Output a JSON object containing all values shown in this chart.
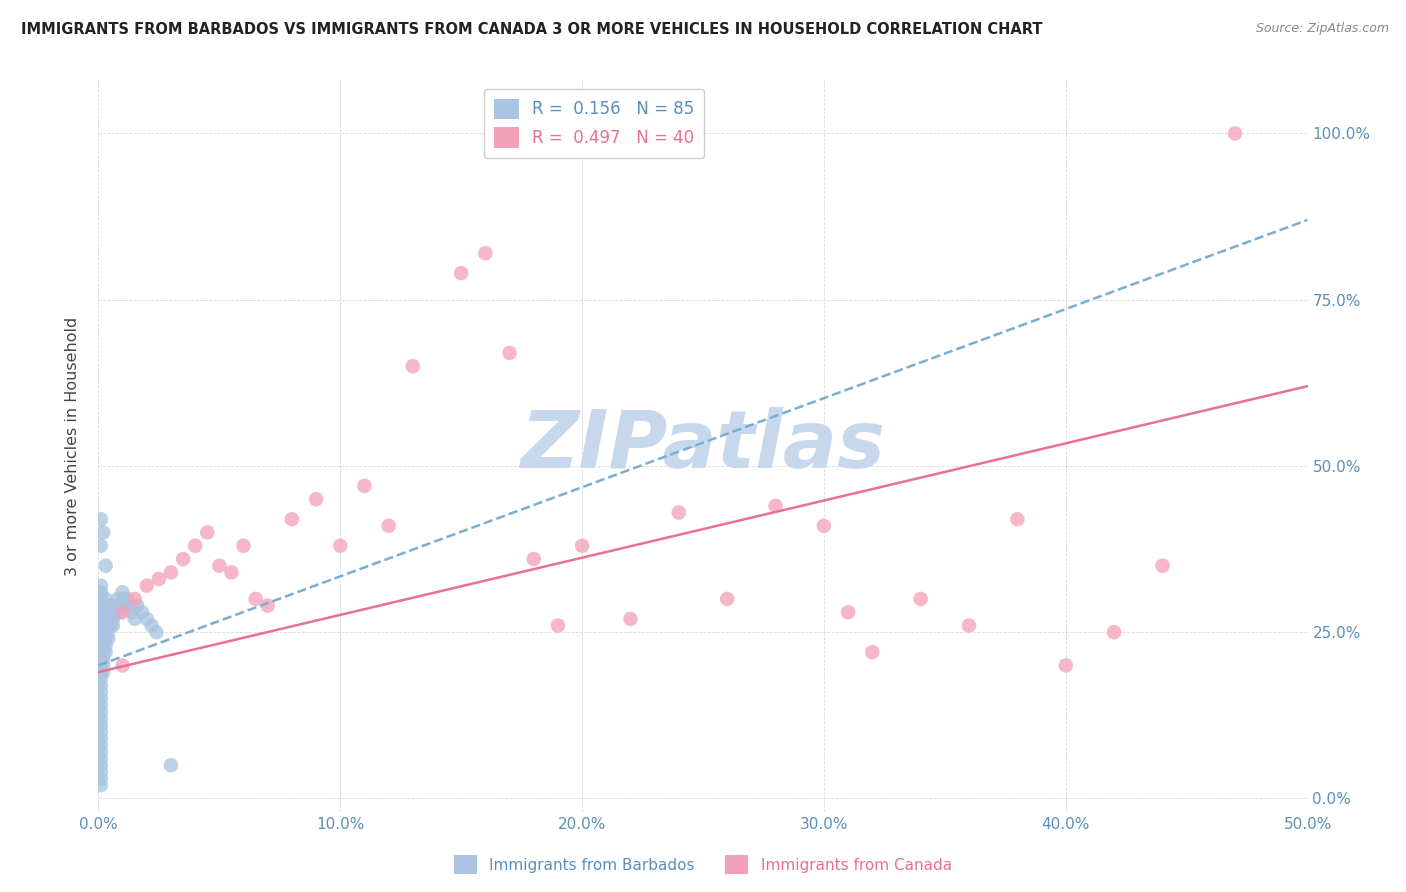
{
  "title": "IMMIGRANTS FROM BARBADOS VS IMMIGRANTS FROM CANADA 3 OR MORE VEHICLES IN HOUSEHOLD CORRELATION CHART",
  "source": "Source: ZipAtlas.com",
  "ylabel": "3 or more Vehicles in Household",
  "xlim": [
    0.0,
    0.5
  ],
  "ylim": [
    -0.02,
    1.08
  ],
  "xticks": [
    0.0,
    0.1,
    0.2,
    0.3,
    0.4,
    0.5
  ],
  "yticks": [
    0.0,
    0.25,
    0.5,
    0.75,
    1.0
  ],
  "xticklabels": [
    "0.0%",
    "10.0%",
    "20.0%",
    "30.0%",
    "40.0%",
    "50.0%"
  ],
  "yticklabels": [
    "0.0%",
    "25.0%",
    "50.0%",
    "75.0%",
    "100.0%"
  ],
  "barbados_color": "#a8c4e0",
  "canada_color": "#f4a0b8",
  "barbados_line_color": "#7aaed0",
  "canada_line_color": "#e87090",
  "watermark": "ZIPatlas",
  "watermark_color": "#c8d8ec",
  "legend_label1": "Immigrants from Barbados",
  "legend_label2": "Immigrants from Canada",
  "barbados_R": 0.156,
  "barbados_N": 85,
  "canada_R": 0.497,
  "canada_N": 40,
  "barbados_line_x0": 0.0,
  "barbados_line_y0": 0.2,
  "barbados_line_x1": 0.5,
  "barbados_line_y1": 0.87,
  "canada_line_x0": 0.0,
  "canada_line_y0": 0.19,
  "canada_line_x1": 0.5,
  "canada_line_y1": 0.62,
  "barbados_x": [
    0.001,
    0.001,
    0.001,
    0.001,
    0.001,
    0.001,
    0.001,
    0.001,
    0.001,
    0.001,
    0.001,
    0.001,
    0.001,
    0.001,
    0.001,
    0.001,
    0.001,
    0.001,
    0.001,
    0.001,
    0.001,
    0.001,
    0.001,
    0.001,
    0.001,
    0.001,
    0.001,
    0.001,
    0.001,
    0.001,
    0.002,
    0.002,
    0.002,
    0.002,
    0.002,
    0.002,
    0.002,
    0.002,
    0.002,
    0.002,
    0.003,
    0.003,
    0.003,
    0.003,
    0.003,
    0.003,
    0.003,
    0.003,
    0.003,
    0.004,
    0.004,
    0.004,
    0.004,
    0.004,
    0.005,
    0.005,
    0.005,
    0.005,
    0.006,
    0.006,
    0.006,
    0.007,
    0.007,
    0.008,
    0.008,
    0.009,
    0.009,
    0.01,
    0.01,
    0.011,
    0.012,
    0.013,
    0.014,
    0.015,
    0.016,
    0.018,
    0.02,
    0.022,
    0.024,
    0.003,
    0.002,
    0.001,
    0.001,
    0.03,
    0.001
  ],
  "barbados_y": [
    0.28,
    0.27,
    0.26,
    0.25,
    0.24,
    0.23,
    0.22,
    0.21,
    0.2,
    0.19,
    0.18,
    0.17,
    0.16,
    0.15,
    0.14,
    0.13,
    0.12,
    0.11,
    0.1,
    0.09,
    0.08,
    0.07,
    0.06,
    0.05,
    0.04,
    0.3,
    0.31,
    0.32,
    0.29,
    0.03,
    0.28,
    0.27,
    0.26,
    0.25,
    0.24,
    0.23,
    0.22,
    0.21,
    0.2,
    0.19,
    0.3,
    0.29,
    0.28,
    0.27,
    0.26,
    0.25,
    0.24,
    0.23,
    0.22,
    0.28,
    0.27,
    0.26,
    0.25,
    0.24,
    0.29,
    0.28,
    0.27,
    0.26,
    0.28,
    0.27,
    0.26,
    0.29,
    0.28,
    0.3,
    0.29,
    0.29,
    0.28,
    0.31,
    0.3,
    0.29,
    0.3,
    0.29,
    0.28,
    0.27,
    0.29,
    0.28,
    0.27,
    0.26,
    0.25,
    0.35,
    0.4,
    0.42,
    0.02,
    0.05,
    0.38
  ],
  "canada_x": [
    0.01,
    0.015,
    0.02,
    0.025,
    0.03,
    0.035,
    0.04,
    0.045,
    0.05,
    0.055,
    0.06,
    0.065,
    0.07,
    0.08,
    0.09,
    0.1,
    0.11,
    0.12,
    0.13,
    0.15,
    0.16,
    0.17,
    0.18,
    0.19,
    0.2,
    0.22,
    0.24,
    0.26,
    0.28,
    0.3,
    0.31,
    0.32,
    0.34,
    0.36,
    0.38,
    0.4,
    0.42,
    0.44,
    0.01,
    0.47
  ],
  "canada_y": [
    0.28,
    0.3,
    0.32,
    0.33,
    0.34,
    0.36,
    0.38,
    0.4,
    0.35,
    0.34,
    0.38,
    0.3,
    0.29,
    0.42,
    0.45,
    0.38,
    0.47,
    0.41,
    0.65,
    0.79,
    0.82,
    0.67,
    0.36,
    0.26,
    0.38,
    0.27,
    0.43,
    0.3,
    0.44,
    0.41,
    0.28,
    0.22,
    0.3,
    0.26,
    0.42,
    0.2,
    0.25,
    0.35,
    0.2,
    1.0
  ]
}
